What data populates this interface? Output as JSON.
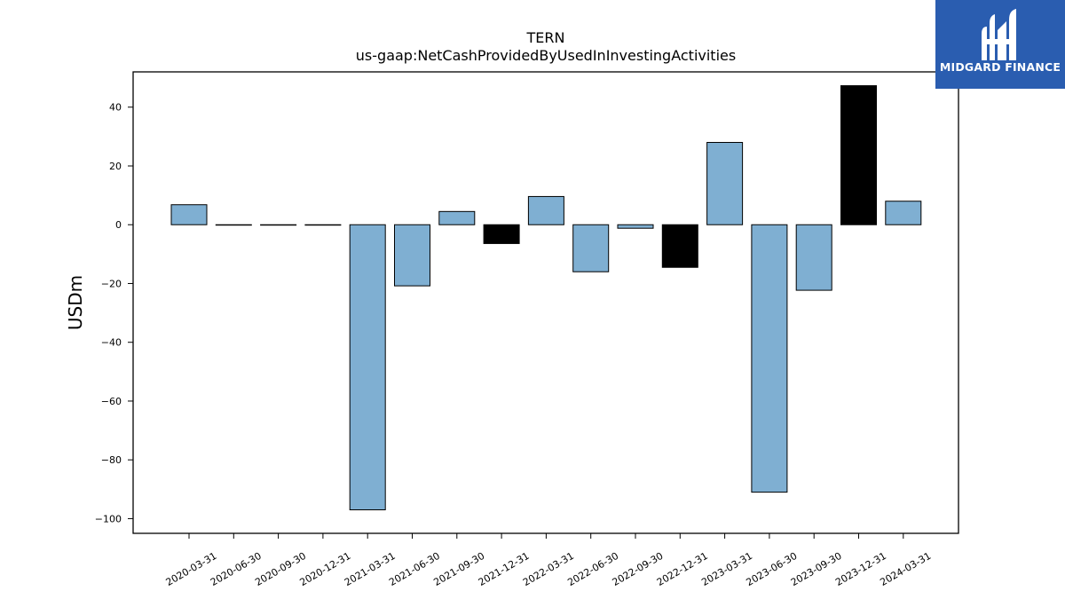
{
  "chart_data": {
    "type": "bar",
    "title": "TERN",
    "subtitle": "us-gaap:NetCashProvidedByUsedInInvestingActivities",
    "xlabel": "",
    "ylabel": "USDm",
    "ylim": [
      -105,
      52
    ],
    "yticks": [
      40,
      20,
      0,
      -20,
      -40,
      -60,
      -80,
      -100
    ],
    "ytick_labels": [
      "40",
      "20",
      "0",
      "−20",
      "−40",
      "−60",
      "−80",
      "−100"
    ],
    "grid": false,
    "legend": "none",
    "categories": [
      "2020-03-31",
      "2020-06-30",
      "2020-09-30",
      "2020-12-31",
      "2021-03-31",
      "2021-06-30",
      "2021-09-30",
      "2021-12-31",
      "2022-03-31",
      "2022-06-30",
      "2022-09-30",
      "2022-12-31",
      "2023-03-31",
      "2023-06-30",
      "2023-09-30",
      "2023-12-31",
      "2024-03-31"
    ],
    "values": [
      6.8,
      0.0,
      0.0,
      0.0,
      -97.0,
      -20.8,
      4.5,
      -6.4,
      9.6,
      -16.0,
      -1.2,
      -14.5,
      28.0,
      -91.0,
      -22.3,
      47.3,
      8.0
    ],
    "bar_colors": [
      "#7fafd2",
      "#7fafd2",
      "#7fafd2",
      "#7fafd2",
      "#7fafd2",
      "#7fafd2",
      "#7fafd2",
      "#000000",
      "#7fafd2",
      "#7fafd2",
      "#7fafd2",
      "#000000",
      "#7fafd2",
      "#7fafd2",
      "#7fafd2",
      "#000000",
      "#7fafd2"
    ]
  },
  "logo": {
    "text": "MIDGARD FINANCE",
    "background": "#2a5db0"
  }
}
